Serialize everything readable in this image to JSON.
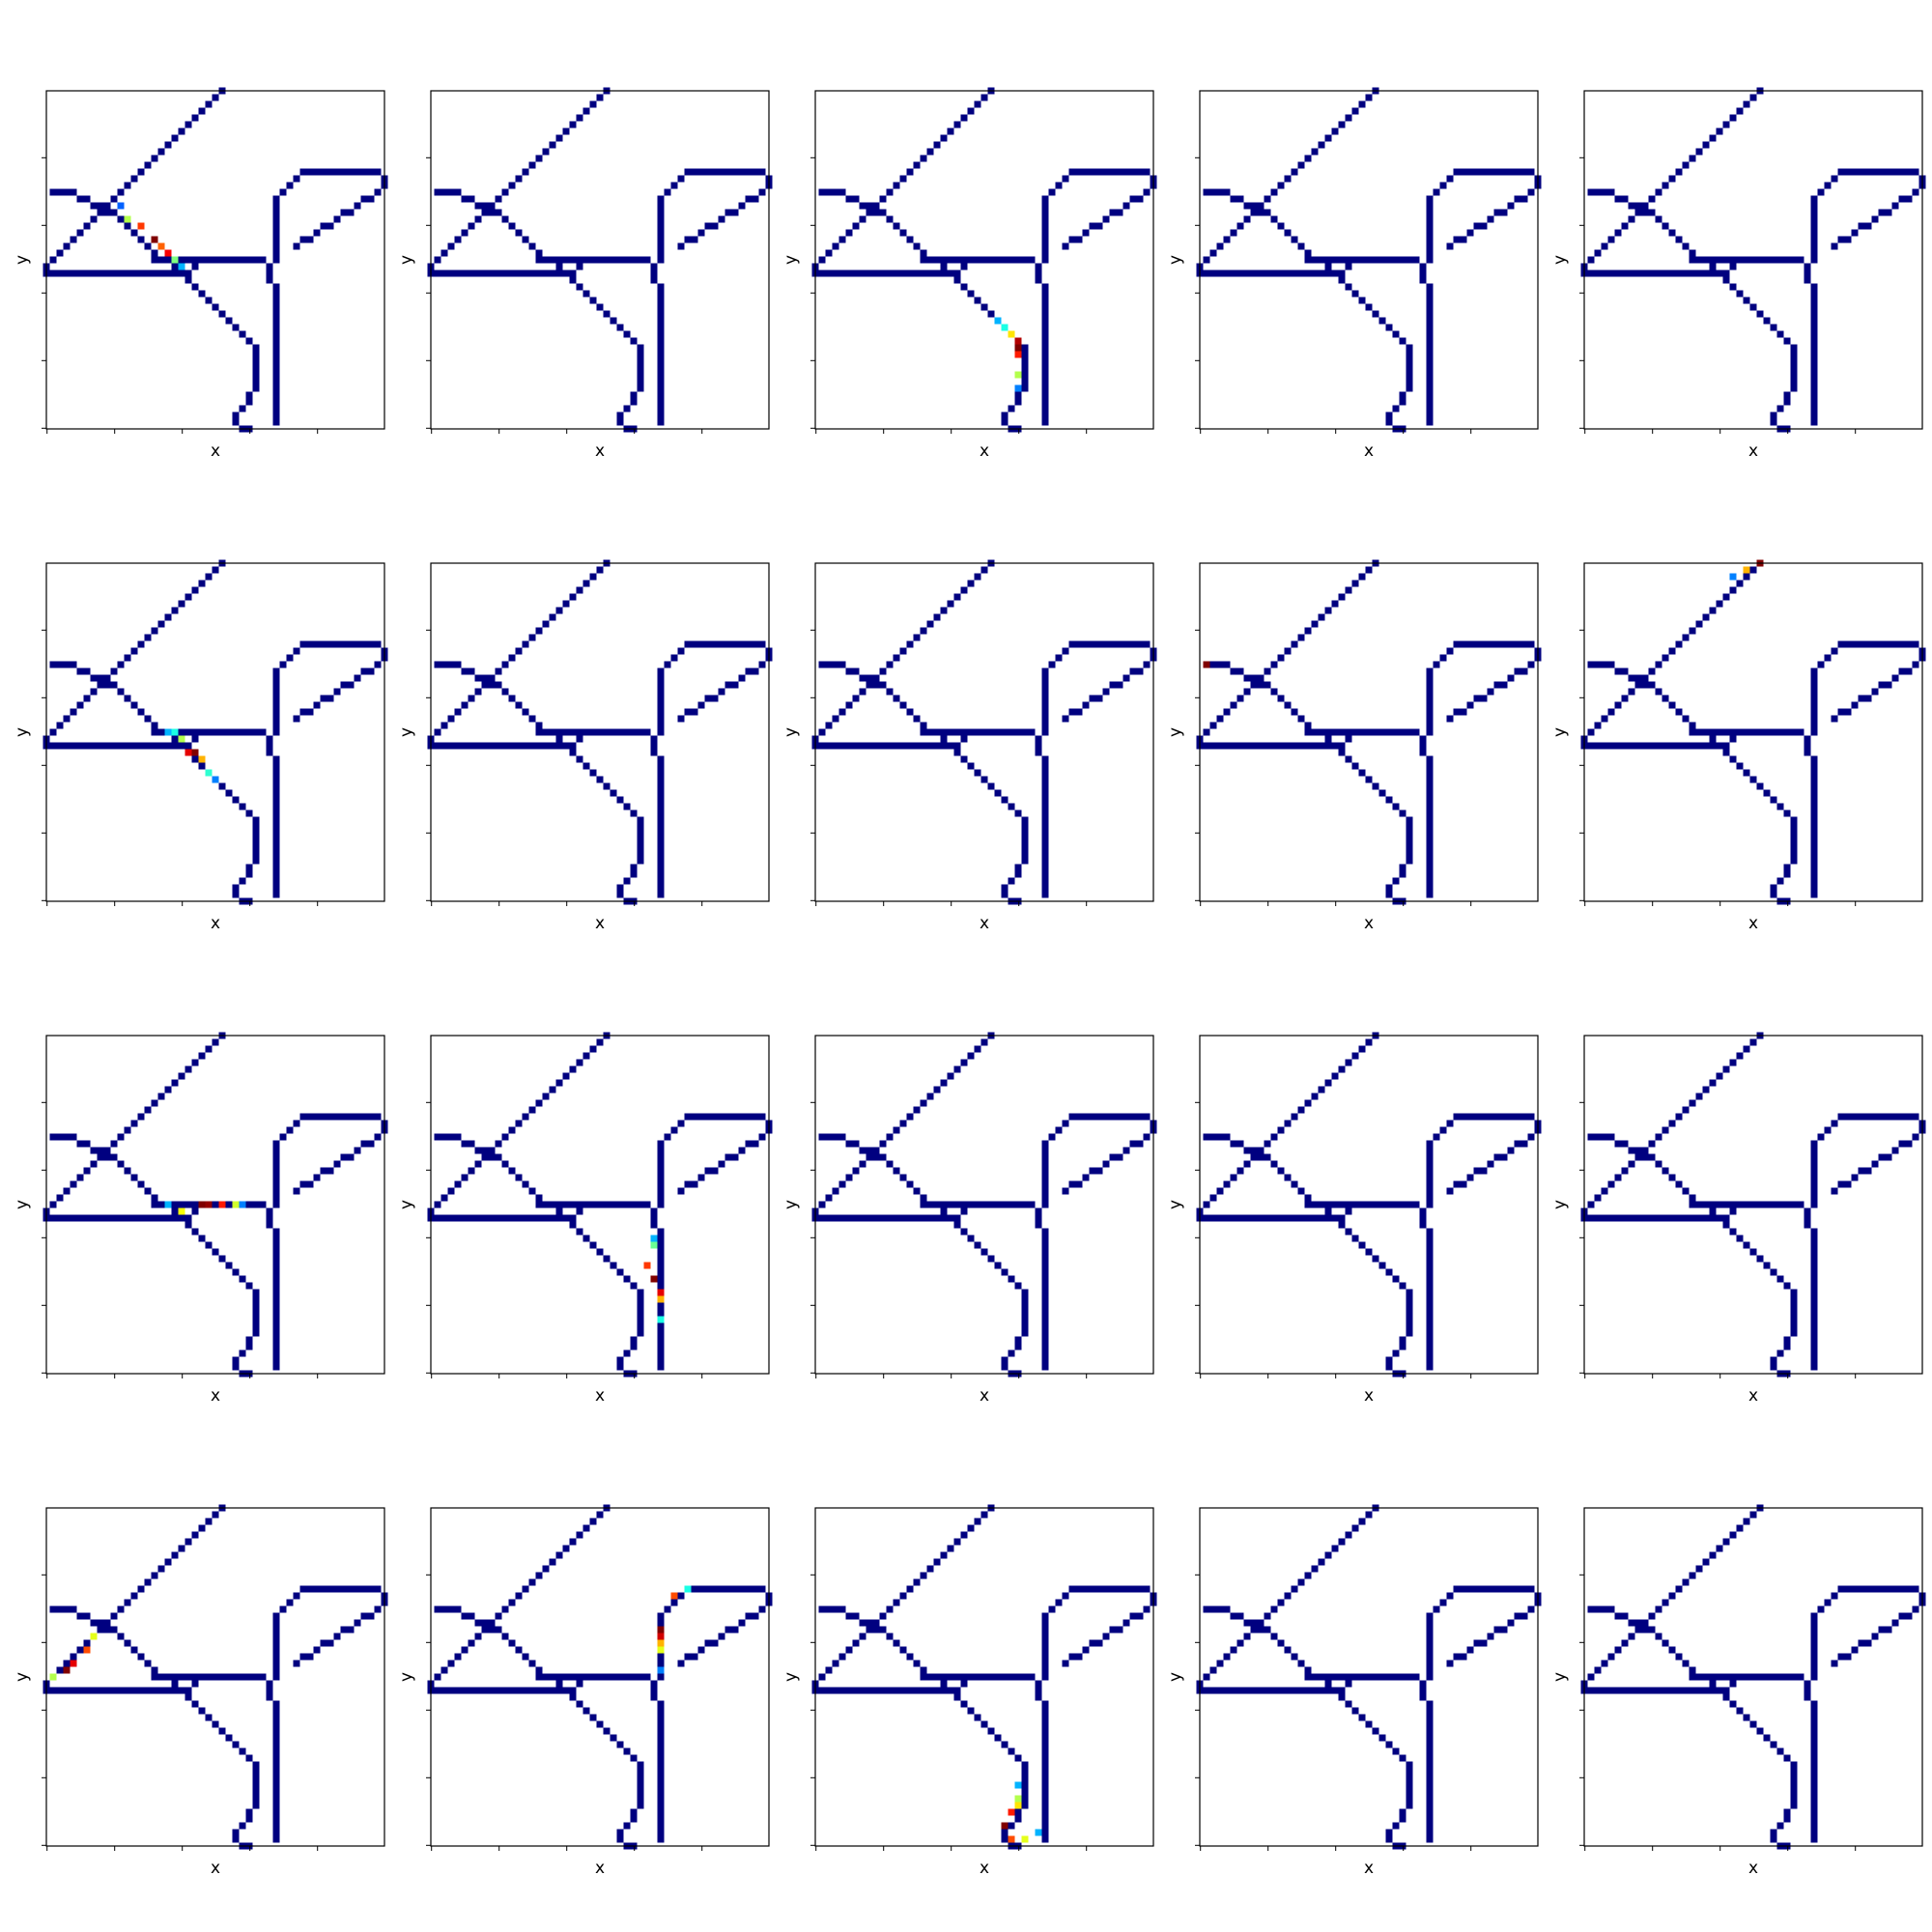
{
  "figure": {
    "rows": 4,
    "cols": 5,
    "grid_cells": [
      50,
      50
    ],
    "background_color": "#ffffff",
    "road_color": "#000080",
    "colormap": "jet",
    "axis_line_color": "#000000"
  },
  "chart_data": {
    "type": "heatmap",
    "xlabel": "x",
    "ylabel": "y",
    "xlim": [
      0,
      50
    ],
    "ylim": [
      0,
      50
    ],
    "x_ticks": [
      0,
      10,
      20,
      30,
      40
    ],
    "y_ticks": [
      0,
      10,
      20,
      30,
      40
    ],
    "tick_labels_shown": false,
    "grid": false,
    "road_network_cells": [
      [
        26,
        50
      ],
      [
        25,
        49
      ],
      [
        24,
        48
      ],
      [
        23,
        47
      ],
      [
        22,
        46
      ],
      [
        21,
        45
      ],
      [
        20,
        44
      ],
      [
        19,
        43
      ],
      [
        18,
        42
      ],
      [
        17,
        41
      ],
      [
        16,
        40
      ],
      [
        15,
        39
      ],
      [
        14,
        38
      ],
      [
        13,
        37
      ],
      [
        12,
        36
      ],
      [
        11,
        35
      ],
      [
        10,
        34
      ],
      [
        9,
        33
      ],
      [
        8,
        32
      ],
      [
        7,
        31
      ],
      [
        6,
        30
      ],
      [
        5,
        29
      ],
      [
        4,
        28
      ],
      [
        3,
        27
      ],
      [
        2,
        26
      ],
      [
        1,
        25
      ],
      [
        0,
        24
      ],
      [
        1,
        35
      ],
      [
        2,
        35
      ],
      [
        3,
        35
      ],
      [
        4,
        35
      ],
      [
        5,
        34
      ],
      [
        6,
        34
      ],
      [
        7,
        33
      ],
      [
        8,
        33
      ],
      [
        9,
        32
      ],
      [
        10,
        32
      ],
      [
        11,
        31
      ],
      [
        12,
        30
      ],
      [
        13,
        29
      ],
      [
        14,
        28
      ],
      [
        15,
        27
      ],
      [
        16,
        26
      ],
      [
        17,
        25
      ],
      [
        18,
        25
      ],
      [
        19,
        24
      ],
      [
        20,
        23
      ],
      [
        21,
        22
      ],
      [
        22,
        21
      ],
      [
        23,
        20
      ],
      [
        24,
        19
      ],
      [
        25,
        18
      ],
      [
        26,
        17
      ],
      [
        27,
        16
      ],
      [
        28,
        15
      ],
      [
        29,
        14
      ],
      [
        30,
        13
      ],
      [
        31,
        12
      ],
      [
        31,
        11
      ],
      [
        31,
        10
      ],
      [
        31,
        9
      ],
      [
        31,
        8
      ],
      [
        31,
        7
      ],
      [
        31,
        6
      ],
      [
        30,
        5
      ],
      [
        30,
        4
      ],
      [
        29,
        3
      ],
      [
        28,
        2
      ],
      [
        28,
        1
      ],
      [
        29,
        0
      ],
      [
        30,
        0
      ],
      [
        0,
        23
      ],
      [
        1,
        23
      ],
      [
        2,
        23
      ],
      [
        3,
        23
      ],
      [
        4,
        23
      ],
      [
        5,
        23
      ],
      [
        6,
        23
      ],
      [
        7,
        23
      ],
      [
        8,
        23
      ],
      [
        9,
        23
      ],
      [
        10,
        23
      ],
      [
        11,
        23
      ],
      [
        12,
        23
      ],
      [
        13,
        23
      ],
      [
        14,
        23
      ],
      [
        15,
        23
      ],
      [
        16,
        23
      ],
      [
        17,
        23
      ],
      [
        18,
        23
      ],
      [
        19,
        23
      ],
      [
        20,
        23
      ],
      [
        21,
        23
      ],
      [
        22,
        24
      ],
      [
        16,
        25
      ],
      [
        17,
        25
      ],
      [
        18,
        25
      ],
      [
        19,
        25
      ],
      [
        20,
        25
      ],
      [
        21,
        25
      ],
      [
        22,
        25
      ],
      [
        23,
        25
      ],
      [
        24,
        25
      ],
      [
        25,
        25
      ],
      [
        26,
        25
      ],
      [
        27,
        25
      ],
      [
        28,
        25
      ],
      [
        29,
        25
      ],
      [
        30,
        25
      ],
      [
        31,
        25
      ],
      [
        32,
        25
      ],
      [
        34,
        2
      ],
      [
        34,
        1
      ],
      [
        34,
        3
      ],
      [
        34,
        4
      ],
      [
        34,
        5
      ],
      [
        34,
        6
      ],
      [
        34,
        7
      ],
      [
        34,
        8
      ],
      [
        34,
        9
      ],
      [
        34,
        10
      ],
      [
        34,
        11
      ],
      [
        34,
        12
      ],
      [
        34,
        13
      ],
      [
        34,
        14
      ],
      [
        34,
        15
      ],
      [
        34,
        16
      ],
      [
        34,
        17
      ],
      [
        34,
        18
      ],
      [
        34,
        19
      ],
      [
        34,
        20
      ],
      [
        34,
        21
      ],
      [
        33,
        22
      ],
      [
        33,
        23
      ],
      [
        33,
        24
      ],
      [
        34,
        25
      ],
      [
        34,
        26
      ],
      [
        34,
        27
      ],
      [
        34,
        28
      ],
      [
        34,
        29
      ],
      [
        34,
        30
      ],
      [
        34,
        31
      ],
      [
        34,
        32
      ],
      [
        34,
        33
      ],
      [
        34,
        34
      ],
      [
        35,
        35
      ],
      [
        36,
        36
      ],
      [
        37,
        37
      ],
      [
        38,
        38
      ],
      [
        39,
        38
      ],
      [
        40,
        38
      ],
      [
        41,
        38
      ],
      [
        42,
        38
      ],
      [
        43,
        38
      ],
      [
        44,
        38
      ],
      [
        45,
        38
      ],
      [
        46,
        38
      ],
      [
        47,
        38
      ],
      [
        48,
        38
      ],
      [
        49,
        38
      ],
      [
        50,
        37
      ],
      [
        37,
        27
      ],
      [
        38,
        28
      ],
      [
        39,
        28
      ],
      [
        40,
        29
      ],
      [
        41,
        30
      ],
      [
        42,
        30
      ],
      [
        43,
        31
      ],
      [
        44,
        32
      ],
      [
        45,
        32
      ],
      [
        46,
        33
      ],
      [
        47,
        34
      ],
      [
        48,
        34
      ],
      [
        49,
        35
      ],
      [
        50,
        36
      ]
    ],
    "panels": [
      {
        "row": 1,
        "col": 1,
        "cells": [
          [
            11,
            33,
            0.22
          ],
          [
            12,
            31,
            0.55
          ],
          [
            14,
            30,
            0.82
          ],
          [
            16,
            28,
            1.0
          ],
          [
            17,
            27,
            0.78
          ],
          [
            18,
            26,
            0.88
          ],
          [
            19,
            25,
            0.5
          ],
          [
            20,
            24,
            0.3
          ]
        ]
      },
      {
        "row": 1,
        "col": 2,
        "cells": []
      },
      {
        "row": 1,
        "col": 3,
        "cells": [
          [
            27,
            16,
            0.3
          ],
          [
            28,
            15,
            0.4
          ],
          [
            29,
            14,
            0.65
          ],
          [
            30,
            13,
            0.95
          ],
          [
            30,
            12,
            1.0
          ],
          [
            30,
            11,
            0.85
          ],
          [
            30,
            8,
            0.55
          ],
          [
            30,
            6,
            0.25
          ]
        ]
      },
      {
        "row": 1,
        "col": 4,
        "cells": []
      },
      {
        "row": 1,
        "col": 5,
        "cells": []
      },
      {
        "row": 2,
        "col": 1,
        "cells": [
          [
            18,
            25,
            0.3
          ],
          [
            19,
            25,
            0.4
          ],
          [
            20,
            24,
            0.55
          ],
          [
            21,
            22,
            0.9
          ],
          [
            22,
            22,
            1.0
          ],
          [
            23,
            21,
            0.7
          ],
          [
            24,
            19,
            0.42
          ],
          [
            25,
            18,
            0.25
          ]
        ]
      },
      {
        "row": 2,
        "col": 2,
        "cells": []
      },
      {
        "row": 2,
        "col": 3,
        "cells": []
      },
      {
        "row": 2,
        "col": 4,
        "cells": [
          [
            1,
            35,
            1.0
          ]
        ]
      },
      {
        "row": 2,
        "col": 5,
        "cells": [
          [
            22,
            48,
            0.25
          ],
          [
            24,
            49,
            0.7
          ],
          [
            26,
            50,
            1.0
          ]
        ]
      },
      {
        "row": 3,
        "col": 1,
        "cells": [
          [
            18,
            25,
            0.3
          ],
          [
            20,
            24,
            0.62
          ],
          [
            23,
            25,
            1.0
          ],
          [
            24,
            25,
            0.98
          ],
          [
            26,
            25,
            0.85
          ],
          [
            28,
            25,
            0.58
          ],
          [
            29,
            25,
            0.25
          ]
        ]
      },
      {
        "row": 3,
        "col": 2,
        "cells": [
          [
            33,
            20,
            0.3
          ],
          [
            33,
            19,
            0.48
          ],
          [
            32,
            16,
            0.82
          ],
          [
            33,
            14,
            1.0
          ],
          [
            34,
            12,
            0.9
          ],
          [
            34,
            11,
            0.7
          ],
          [
            34,
            8,
            0.4
          ]
        ]
      },
      {
        "row": 3,
        "col": 3,
        "cells": []
      },
      {
        "row": 3,
        "col": 4,
        "cells": []
      },
      {
        "row": 3,
        "col": 5,
        "cells": []
      },
      {
        "row": 4,
        "col": 1,
        "cells": [
          [
            1,
            25,
            0.55
          ],
          [
            3,
            26,
            1.0
          ],
          [
            4,
            27,
            0.9
          ],
          [
            6,
            29,
            0.8
          ],
          [
            7,
            31,
            0.6
          ]
        ]
      },
      {
        "row": 4,
        "col": 2,
        "cells": [
          [
            34,
            26,
            0.25
          ],
          [
            34,
            29,
            0.6
          ],
          [
            34,
            30,
            0.7
          ],
          [
            34,
            31,
            0.92
          ],
          [
            34,
            32,
            1.0
          ],
          [
            36,
            37,
            0.8
          ],
          [
            38,
            38,
            0.4
          ]
        ]
      },
      {
        "row": 4,
        "col": 3,
        "cells": [
          [
            30,
            9,
            0.3
          ],
          [
            30,
            7,
            0.55
          ],
          [
            30,
            6,
            0.65
          ],
          [
            29,
            5,
            0.85
          ],
          [
            28,
            3,
            1.0
          ],
          [
            29,
            1,
            0.8
          ],
          [
            31,
            1,
            0.6
          ],
          [
            33,
            2,
            0.3
          ]
        ]
      },
      {
        "row": 4,
        "col": 4,
        "cells": []
      },
      {
        "row": 4,
        "col": 5,
        "cells": []
      }
    ]
  }
}
